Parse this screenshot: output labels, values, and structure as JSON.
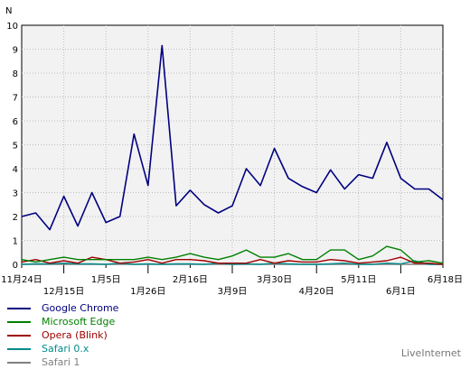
{
  "chart_data": {
    "type": "line",
    "ylabel": "N",
    "ylim": [
      0,
      10
    ],
    "yticks": [
      "0",
      "1",
      "2",
      "3",
      "4",
      "5",
      "6",
      "7",
      "8",
      "9",
      "10"
    ],
    "xticks": [
      "11月24日",
      "12月15日",
      "1月5日",
      "1月26日",
      "2月16日",
      "3月9日",
      "3月30日",
      "4月20日",
      "5月11日",
      "6月1日",
      "6月18日"
    ],
    "grid": true,
    "legend_position": "bottom-left",
    "series": [
      {
        "name": "Google Chrome",
        "color": "#000080",
        "values": [
          2.0,
          2.15,
          1.45,
          2.85,
          1.6,
          3.0,
          1.75,
          2.0,
          5.45,
          3.3,
          9.15,
          2.45,
          3.1,
          2.5,
          2.15,
          2.45,
          4.0,
          3.3,
          4.85,
          3.6,
          3.25,
          3.0,
          3.95,
          3.15,
          3.75,
          3.6,
          5.1,
          3.6,
          3.15,
          3.15,
          2.7
        ]
      },
      {
        "name": "Microsoft Edge",
        "color": "#008000",
        "values": [
          0.2,
          0.1,
          0.2,
          0.3,
          0.2,
          0.2,
          0.2,
          0.2,
          0.2,
          0.3,
          0.2,
          0.3,
          0.45,
          0.3,
          0.2,
          0.35,
          0.6,
          0.3,
          0.3,
          0.45,
          0.2,
          0.2,
          0.6,
          0.6,
          0.2,
          0.35,
          0.75,
          0.6,
          0.1,
          0.15,
          0.05
        ]
      },
      {
        "name": "Opera (Blink)",
        "color": "#a00000",
        "values": [
          0.1,
          0.2,
          0.05,
          0.15,
          0.05,
          0.3,
          0.2,
          0.05,
          0.1,
          0.2,
          0.05,
          0.2,
          0.2,
          0.15,
          0.05,
          0.05,
          0.05,
          0.2,
          0.05,
          0.15,
          0.1,
          0.1,
          0.2,
          0.15,
          0.05,
          0.1,
          0.15,
          0.3,
          0.05,
          0.05,
          0.0
        ]
      },
      {
        "name": "Safari 0.x",
        "color": "#008b8b",
        "values": [
          0.0,
          0.02,
          0.02,
          0.05,
          0.02,
          0.02,
          0.0,
          0.05,
          0.0,
          0.02,
          0.0,
          0.02,
          0.02,
          0.0,
          0.05,
          0.0,
          0.02,
          0.0,
          0.05,
          0.02,
          0.0,
          0.0,
          0.02,
          0.05,
          0.0,
          0.0,
          0.05,
          0.02,
          0.15,
          0.0,
          0.0
        ]
      },
      {
        "name": "Safari 1",
        "color": "#808080",
        "values": [
          0.0,
          0.0,
          0.0,
          0.0,
          0.0,
          0.0,
          0.0,
          0.0,
          0.0,
          0.0,
          0.0,
          0.0,
          0.0,
          0.0,
          0.0,
          0.0,
          0.0,
          0.0,
          0.0,
          0.0,
          0.0,
          0.0,
          0.0,
          0.0,
          0.0,
          0.0,
          0.0,
          0.0,
          0.0,
          0.0,
          0.0
        ]
      }
    ]
  },
  "watermark": "LiveInternet"
}
